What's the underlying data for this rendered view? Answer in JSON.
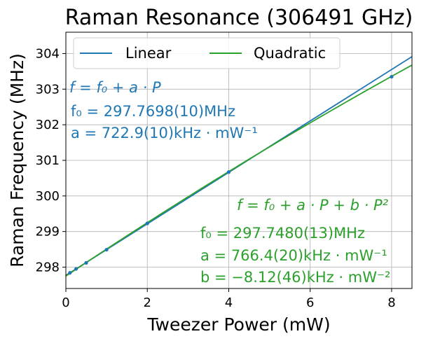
{
  "chart_data": {
    "type": "line",
    "title": "Raman Resonance (306491 GHz)",
    "xlabel": "Tweezer Power (mW)",
    "ylabel": "Raman Frequency (MHz)",
    "xlim": [
      0,
      8.5
    ],
    "ylim": [
      297.4,
      304.6
    ],
    "xticks": [
      0,
      2,
      4,
      6,
      8
    ],
    "yticks": [
      298,
      299,
      300,
      301,
      302,
      303,
      304
    ],
    "grid": true,
    "legend_position": "top",
    "legend": [
      "Linear",
      "Quadratic"
    ],
    "data_points": {
      "color": "#1f77b4",
      "x": [
        0.1,
        0.25,
        0.5,
        1.0,
        2.0,
        4.0,
        8.0
      ],
      "y": [
        297.84,
        297.95,
        298.12,
        298.49,
        299.23,
        300.67,
        303.35
      ]
    },
    "series": [
      {
        "name": "Linear",
        "color": "#1f77b4",
        "model": "linear",
        "f0": 297.7698,
        "a": 0.7229,
        "annotation": {
          "formula": "f = f₀ + a · P",
          "line1": "f₀ = 297.7698(10)MHz",
          "line2": "a = 722.9(10)kHz · mW⁻¹"
        }
      },
      {
        "name": "Quadratic",
        "color": "#2ca02c",
        "model": "quadratic",
        "f0": 297.748,
        "a": 0.7664,
        "b": -0.00812,
        "annotation": {
          "formula": "f = f₀ + a · P + b · P²",
          "line1": "f₀ = 297.7480(13)MHz",
          "line2": "a = 766.4(20)kHz · mW⁻¹",
          "line3": "b = −8.12(46)kHz · mW⁻²"
        }
      }
    ]
  }
}
